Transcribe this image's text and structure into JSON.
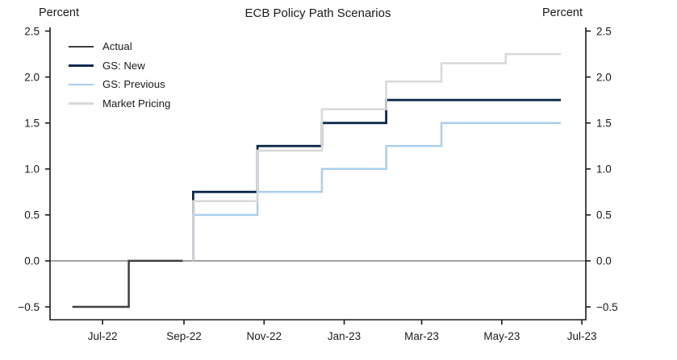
{
  "header": {
    "title": "ECB Policy Path Scenarios",
    "left_axis_title": "Percent",
    "right_axis_title": "Percent"
  },
  "colors": {
    "axis": "#1a1a1a",
    "zero_line": "#5a5a5a",
    "text": "#1a1a1a",
    "background": "#ffffff"
  },
  "chart_data": {
    "type": "line",
    "subtype": "step",
    "title": "ECB Policy Path Scenarios",
    "grid": false,
    "zero_line": 0,
    "legend": {
      "position": "upper-left",
      "entries": [
        "Actual",
        "GS: New",
        "GS: Previous",
        "Market Pricing"
      ]
    },
    "y_axis": {
      "label_left": "Percent",
      "label_right": "Percent",
      "lim": [
        -0.64,
        2.54
      ],
      "ticks": [
        2.5,
        2.0,
        1.5,
        1.0,
        0.5,
        0.0,
        -0.5
      ],
      "tick_labels": [
        "2.5",
        "2.0",
        "1.5",
        "1.0",
        "0.5",
        "0.0",
        "−0.5"
      ]
    },
    "x_axis": {
      "lim_dates": [
        "2022-05-22",
        "2023-07-04"
      ],
      "tick_dates": [
        "2022-07-01",
        "2022-09-01",
        "2022-11-01",
        "2023-01-01",
        "2023-03-01",
        "2023-05-01",
        "2023-07-01"
      ],
      "tick_labels": [
        "Jul-22",
        "Sep-22",
        "Nov-22",
        "Jan-23",
        "Mar-23",
        "May-23",
        "Jul-23"
      ]
    },
    "series": [
      {
        "name": "Actual",
        "color": "#3f3f3f",
        "width": 2.5,
        "points": [
          [
            "2022-06-08",
            -0.5
          ],
          [
            "2022-07-21",
            -0.5
          ],
          [
            "2022-07-21",
            0.0
          ],
          [
            "2022-08-31",
            0.0
          ]
        ]
      },
      {
        "name": "GS: New",
        "color": "#0e2a4c",
        "width": 2.8,
        "points": [
          [
            "2022-09-08",
            0.0
          ],
          [
            "2022-09-08",
            0.75
          ],
          [
            "2022-10-27",
            0.75
          ],
          [
            "2022-10-27",
            1.25
          ],
          [
            "2022-12-15",
            1.25
          ],
          [
            "2022-12-15",
            1.5
          ],
          [
            "2023-02-02",
            1.5
          ],
          [
            "2023-02-02",
            1.75
          ],
          [
            "2023-06-15",
            1.75
          ]
        ]
      },
      {
        "name": "GS: Previous",
        "color": "#a9cfee",
        "width": 2.5,
        "points": [
          [
            "2022-09-08",
            0.0
          ],
          [
            "2022-09-08",
            0.5
          ],
          [
            "2022-10-27",
            0.5
          ],
          [
            "2022-10-27",
            0.75
          ],
          [
            "2022-12-15",
            0.75
          ],
          [
            "2022-12-15",
            1.0
          ],
          [
            "2023-02-02",
            1.0
          ],
          [
            "2023-02-02",
            1.25
          ],
          [
            "2023-03-16",
            1.25
          ],
          [
            "2023-03-16",
            1.5
          ],
          [
            "2023-06-15",
            1.5
          ]
        ]
      },
      {
        "name": "Market Pricing",
        "color": "#d8d8d8",
        "width": 2.5,
        "points": [
          [
            "2022-09-08",
            0.0
          ],
          [
            "2022-09-08",
            0.65
          ],
          [
            "2022-10-27",
            0.65
          ],
          [
            "2022-10-27",
            1.2
          ],
          [
            "2022-12-15",
            1.2
          ],
          [
            "2022-12-15",
            1.65
          ],
          [
            "2023-02-02",
            1.65
          ],
          [
            "2023-02-02",
            1.95
          ],
          [
            "2023-03-16",
            1.95
          ],
          [
            "2023-03-16",
            2.15
          ],
          [
            "2023-05-04",
            2.15
          ],
          [
            "2023-05-04",
            2.25
          ],
          [
            "2023-06-15",
            2.25
          ]
        ]
      }
    ]
  }
}
